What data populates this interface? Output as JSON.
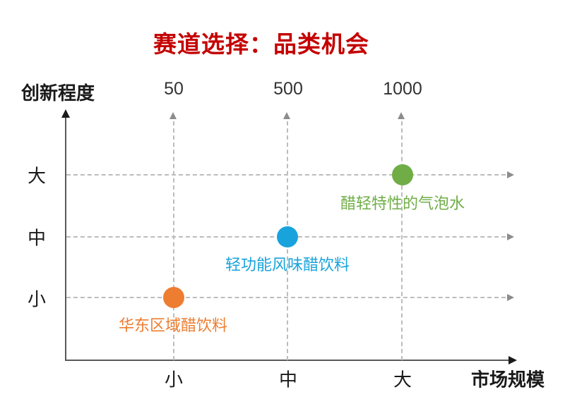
{
  "title": {
    "text": "赛道选择：品类机会",
    "color": "#C40000"
  },
  "chart_data": {
    "type": "scatter",
    "title": "赛道选择：品类机会",
    "x_axis": {
      "label": "市场规模",
      "categories": [
        "小",
        "中",
        "大"
      ],
      "top_scale_values": [
        "50",
        "500",
        "1000"
      ]
    },
    "y_axis": {
      "label": "创新程度",
      "categories_top_to_bottom": [
        "大",
        "中",
        "小"
      ]
    },
    "grid": "dashed-with-arrows",
    "legend": "none",
    "points": [
      {
        "label": "华东区域醋饮料",
        "x_category": "小",
        "y_category": "小",
        "market_size": 50,
        "color": "#ED7D31"
      },
      {
        "label": "轻功能风味醋饮料",
        "x_category": "中",
        "y_category": "中",
        "market_size": 500,
        "color": "#18A3DC"
      },
      {
        "label": "醋轻特性的气泡水",
        "x_category": "大",
        "y_category": "大",
        "market_size": 1000,
        "color": "#70AD47"
      }
    ]
  }
}
